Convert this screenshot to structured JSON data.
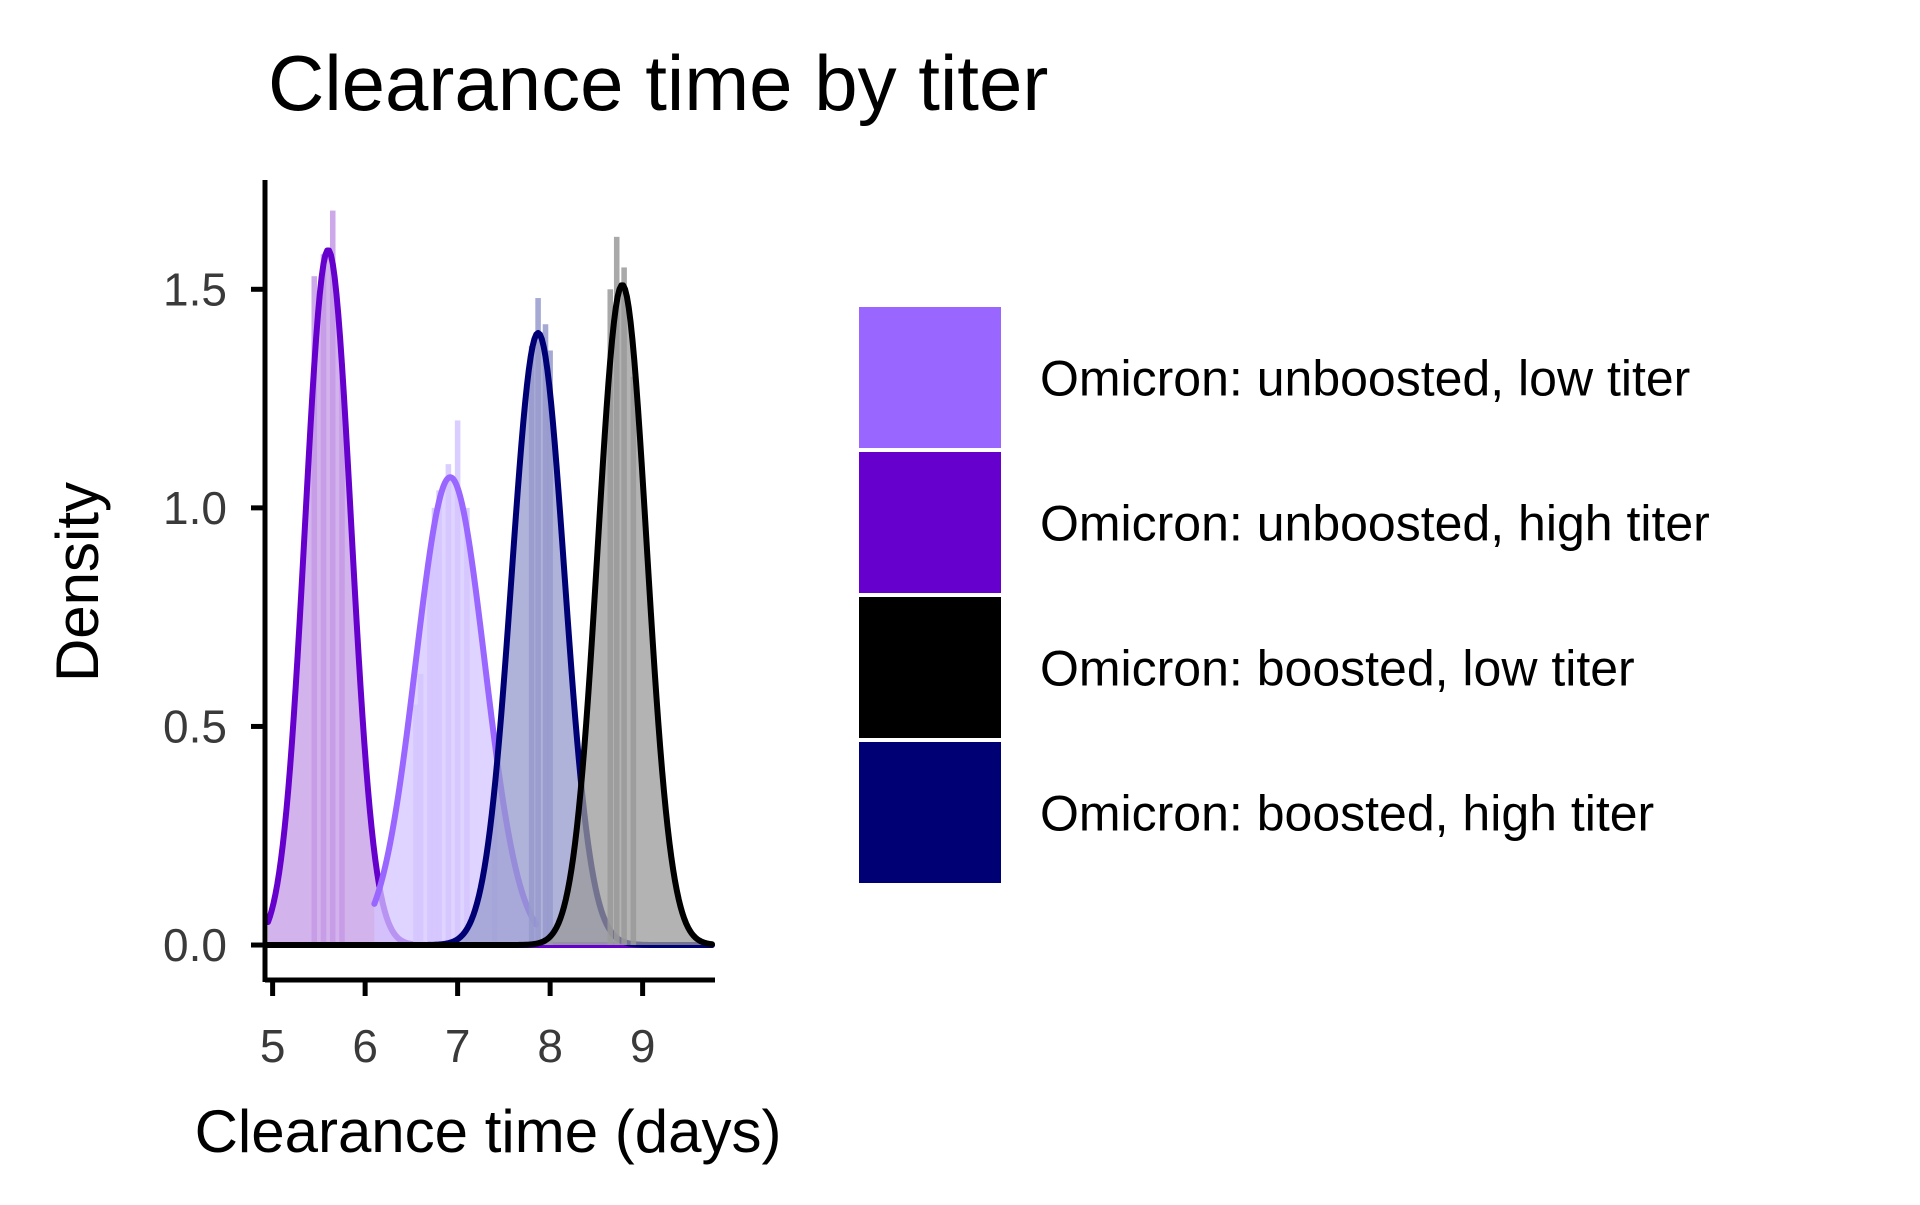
{
  "chart_data": {
    "type": "area",
    "title": "Clearance time by titer",
    "xlabel": "Clearance time (days)",
    "ylabel": "Density",
    "xlim": [
      4.95,
      9.75
    ],
    "ylim": [
      -0.08,
      1.75
    ],
    "x_ticks": [
      5,
      6,
      7,
      8,
      9
    ],
    "y_ticks": [
      0.0,
      0.5,
      1.0,
      1.5
    ],
    "y_tick_labels": [
      "0.0",
      "0.5",
      "1.0",
      "1.5"
    ],
    "grid": false,
    "legend_position": "right",
    "series": [
      {
        "name": "Omicron: unboosted, low titer",
        "color": "#9966FF",
        "fill": "#D4C4FF",
        "mean": 6.92,
        "sd": 0.372,
        "peak": 1.07,
        "xrange": [
          6.1,
          7.85
        ],
        "hist_bins": [
          {
            "x": 6.55,
            "y": 0.55
          },
          {
            "x": 6.6,
            "y": 0.62
          },
          {
            "x": 6.7,
            "y": 0.9
          },
          {
            "x": 6.75,
            "y": 1.0
          },
          {
            "x": 6.8,
            "y": 1.04
          },
          {
            "x": 6.9,
            "y": 1.1
          },
          {
            "x": 7.0,
            "y": 1.2
          },
          {
            "x": 7.1,
            "y": 1.0
          },
          {
            "x": 7.4,
            "y": 0.35
          }
        ]
      },
      {
        "name": "Omicron: unboosted, high titer",
        "color": "#6600CC",
        "fill": "#C49AE6",
        "mean": 5.6,
        "sd": 0.249,
        "peak": 1.59,
        "xrange": [
          4.95,
          9.75
        ],
        "hist_bins": [
          {
            "x": 5.45,
            "y": 1.53
          },
          {
            "x": 5.55,
            "y": 1.58
          },
          {
            "x": 5.65,
            "y": 1.68
          },
          {
            "x": 5.75,
            "y": 1.3
          }
        ]
      },
      {
        "name": "Omicron: boosted, low titer",
        "color": "#000000",
        "fill": "#9A9A9A",
        "mean": 8.78,
        "sd": 0.264,
        "peak": 1.51,
        "xrange": [
          4.95,
          9.75
        ],
        "hist_bins": [
          {
            "x": 8.65,
            "y": 1.5
          },
          {
            "x": 8.72,
            "y": 1.62
          },
          {
            "x": 8.8,
            "y": 1.55
          },
          {
            "x": 8.9,
            "y": 1.3
          }
        ]
      },
      {
        "name": "Omicron: boosted, high titer",
        "color": "#000075",
        "fill": "#969ACC",
        "mean": 7.87,
        "sd": 0.285,
        "peak": 1.4,
        "xrange": [
          4.95,
          9.75
        ],
        "hist_bins": [
          {
            "x": 7.8,
            "y": 1.37
          },
          {
            "x": 7.87,
            "y": 1.48
          },
          {
            "x": 7.95,
            "y": 1.42
          },
          {
            "x": 8.0,
            "y": 1.36
          }
        ]
      }
    ]
  },
  "legend": {
    "items": [
      {
        "label": "Omicron: unboosted, low titer",
        "color": "#9966FF"
      },
      {
        "label": "Omicron: unboosted, high titer",
        "color": "#6600CC"
      },
      {
        "label": "Omicron: boosted, low titer",
        "color": "#000000"
      },
      {
        "label": "Omicron: boosted, high titer",
        "color": "#000075"
      }
    ]
  }
}
